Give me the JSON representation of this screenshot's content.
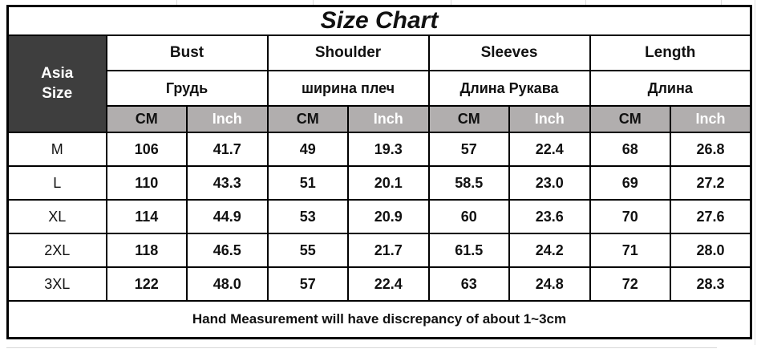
{
  "title": "Size Chart",
  "corner_label": "Asia Size",
  "columns": {
    "groups": [
      {
        "en": "Bust",
        "ru": "Грудь"
      },
      {
        "en": "Shoulder",
        "ru": "ширина плеч"
      },
      {
        "en": "Sleeves",
        "ru": "Длина Рукава"
      },
      {
        "en": "Length",
        "ru": "Длина"
      }
    ],
    "units": {
      "cm": "CM",
      "inch": "Inch"
    }
  },
  "rows": [
    {
      "size": "M",
      "values": [
        "106",
        "41.7",
        "49",
        "19.3",
        "57",
        "22.4",
        "68",
        "26.8"
      ]
    },
    {
      "size": "L",
      "values": [
        "110",
        "43.3",
        "51",
        "20.1",
        "58.5",
        "23.0",
        "69",
        "27.2"
      ]
    },
    {
      "size": "XL",
      "values": [
        "114",
        "44.9",
        "53",
        "20.9",
        "60",
        "23.6",
        "70",
        "27.6"
      ]
    },
    {
      "size": "2XL",
      "values": [
        "118",
        "46.5",
        "55",
        "21.7",
        "61.5",
        "24.2",
        "71",
        "28.0"
      ]
    },
    {
      "size": "3XL",
      "values": [
        "122",
        "48.0",
        "57",
        "22.4",
        "63",
        "24.8",
        "72",
        "28.3"
      ]
    }
  ],
  "footer_note": "Hand Measurement will have discrepancy of about 1~3cm",
  "colors": {
    "corner_bg": "#3e3e3e",
    "corner_text": "#ffffff",
    "unit_bg": "#b1aeae",
    "unit_inch_text": "#ffffff",
    "border": "#000000",
    "cell_bg": "#ffffff"
  },
  "chart_data": {
    "type": "table",
    "title": "Size Chart",
    "row_header": "Asia Size",
    "column_groups": [
      {
        "en": "Bust",
        "ru": "Грудь",
        "units": [
          "CM",
          "Inch"
        ]
      },
      {
        "en": "Shoulder",
        "ru": "ширина плеч",
        "units": [
          "CM",
          "Inch"
        ]
      },
      {
        "en": "Sleeves",
        "ru": "Длина Рукава",
        "units": [
          "CM",
          "Inch"
        ]
      },
      {
        "en": "Length",
        "ru": "Длина",
        "units": [
          "CM",
          "Inch"
        ]
      }
    ],
    "columns": [
      "Size",
      "Bust CM",
      "Bust Inch",
      "Shoulder CM",
      "Shoulder Inch",
      "Sleeves CM",
      "Sleeves Inch",
      "Length CM",
      "Length Inch"
    ],
    "rows": [
      [
        "M",
        106,
        41.7,
        49,
        19.3,
        57,
        22.4,
        68,
        26.8
      ],
      [
        "L",
        110,
        43.3,
        51,
        20.1,
        58.5,
        23.0,
        69,
        27.2
      ],
      [
        "XL",
        114,
        44.9,
        53,
        20.9,
        60,
        23.6,
        70,
        27.6
      ],
      [
        "2XL",
        118,
        46.5,
        55,
        21.7,
        61.5,
        24.2,
        71,
        28.0
      ],
      [
        "3XL",
        122,
        48.0,
        57,
        22.4,
        63,
        24.8,
        72,
        28.3
      ]
    ],
    "footnote": "Hand Measurement will have discrepancy of about 1~3cm"
  }
}
